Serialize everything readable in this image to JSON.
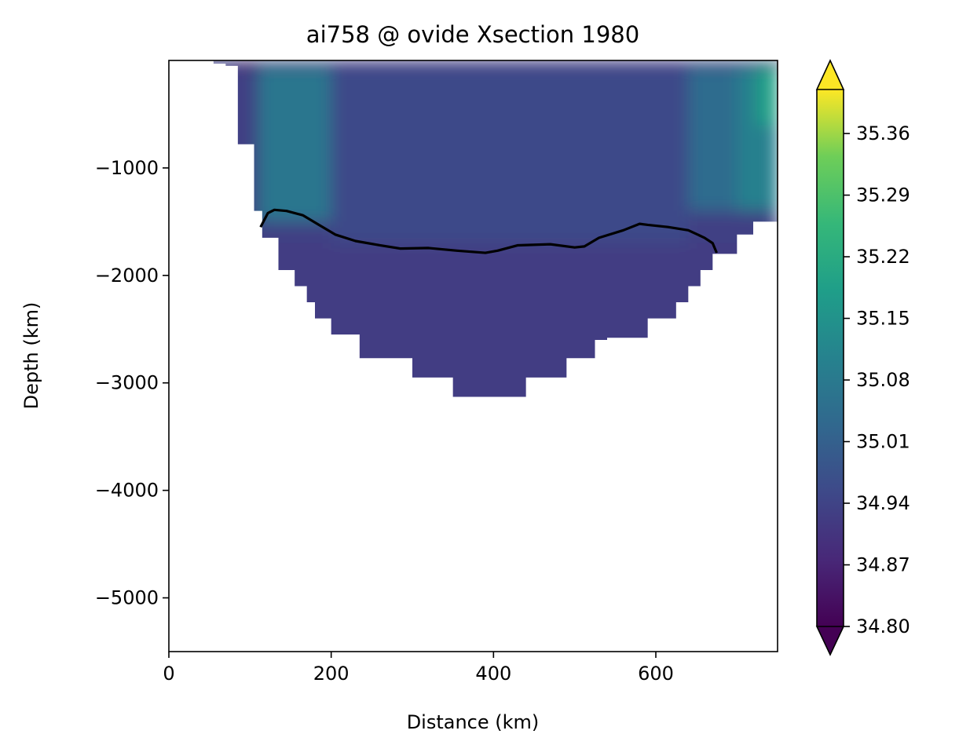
{
  "chart_data": {
    "type": "heatmap",
    "title": "ai758 @ ovide Xsection 1980",
    "xlabel": "Distance (km)",
    "ylabel": "Depth (km)",
    "xlim": [
      0,
      750
    ],
    "ylim": [
      -5500,
      0
    ],
    "x_ticks": [
      0,
      200,
      400,
      600
    ],
    "x_tick_labels": [
      "0",
      "200",
      "400",
      "600"
    ],
    "y_ticks": [
      -1000,
      -2000,
      -3000,
      -4000,
      -5000
    ],
    "y_tick_labels": [
      "−1000",
      "−2000",
      "−3000",
      "−4000",
      "−5000"
    ],
    "colormap": "viridis",
    "colorbar": {
      "vmin": 34.8,
      "vmax": 35.41,
      "extend": "both",
      "ticks": [
        34.8,
        34.87,
        34.94,
        35.01,
        35.08,
        35.15,
        35.22,
        35.29,
        35.36
      ],
      "tick_labels": [
        "34.80",
        "34.87",
        "34.94",
        "35.01",
        "35.08",
        "35.15",
        "35.22",
        "35.29",
        "35.36"
      ]
    },
    "seafloor_depth_profile": {
      "description_units": "x in km, depth in m",
      "x": [
        35,
        55,
        70,
        85,
        105,
        115,
        135,
        155,
        170,
        180,
        200,
        235,
        300,
        350,
        440,
        490,
        525,
        540,
        560,
        570,
        590,
        625,
        640,
        655,
        670,
        700,
        720,
        750
      ],
      "bottom": [
        0,
        -30,
        -50,
        -780,
        -1400,
        -1650,
        -1950,
        -2100,
        -2250,
        -2400,
        -2550,
        -2770,
        -2950,
        -3130,
        -2950,
        -2770,
        -2600,
        -2580,
        -2580,
        -2580,
        -2400,
        -2250,
        -2100,
        -1950,
        -1800,
        -1620,
        -1500,
        -1400
      ]
    },
    "field_regions": [
      {
        "x": [
          85,
          110
        ],
        "y": [
          -60,
          0
        ],
        "value": 34.81
      },
      {
        "x": [
          105,
          860
        ],
        "y": [
          -40,
          0
        ],
        "value": 34.89
      },
      {
        "x": [
          110,
          200
        ],
        "y": [
          -1500,
          -60
        ],
        "value": 35.07
      },
      {
        "x": [
          200,
          640
        ],
        "y": [
          -1800,
          -60
        ],
        "value": 34.955
      },
      {
        "x": [
          640,
          700
        ],
        "y": [
          -1400,
          -60
        ],
        "value": 35.04
      },
      {
        "x": [
          700,
          750
        ],
        "y": [
          -1400,
          -60
        ],
        "value": 35.1
      },
      {
        "x": [
          725,
          750
        ],
        "y": [
          -600,
          -60
        ],
        "value": 35.19
      },
      {
        "x": [
          110,
          750
        ],
        "y": [
          -3200,
          -1700
        ],
        "value": 34.925
      }
    ],
    "isoline": {
      "x": [
        113,
        122,
        130,
        145,
        165,
        185,
        205,
        230,
        260,
        285,
        320,
        355,
        390,
        405,
        430,
        470,
        500,
        512,
        530,
        560,
        580,
        590,
        615,
        640,
        660,
        670,
        675
      ],
      "y": [
        -1550,
        -1420,
        -1390,
        -1400,
        -1440,
        -1530,
        -1620,
        -1680,
        -1720,
        -1750,
        -1745,
        -1770,
        -1790,
        -1770,
        -1720,
        -1710,
        -1740,
        -1730,
        -1650,
        -1580,
        -1520,
        -1530,
        -1550,
        -1580,
        -1650,
        -1700,
        -1790
      ]
    }
  }
}
